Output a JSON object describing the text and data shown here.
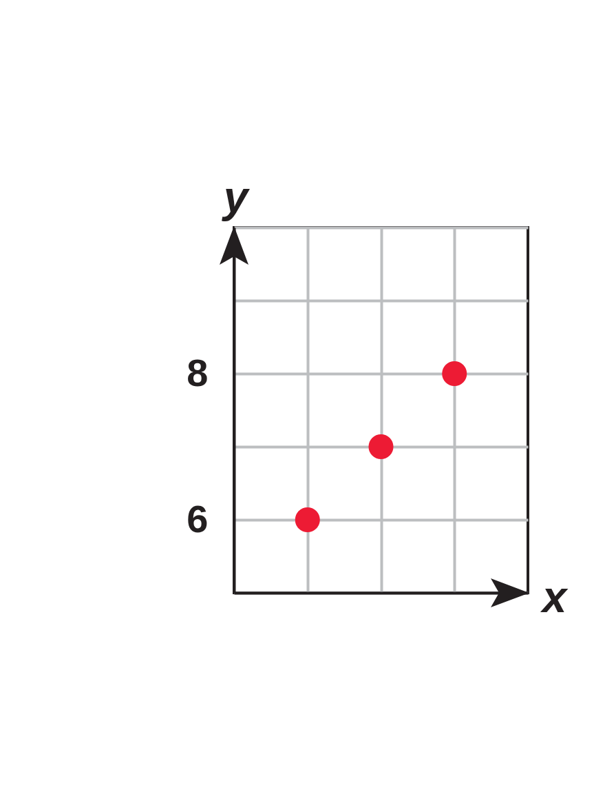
{
  "chart_data": {
    "type": "scatter",
    "xlabel": "x",
    "ylabel": "y",
    "categories": [
      null,
      null,
      null
    ],
    "values": [
      6,
      7,
      8
    ],
    "color": "#ed1b34",
    "ylim": [
      5,
      10
    ],
    "yticks": [
      {
        "value": 5,
        "label": null
      },
      6,
      {
        "value": 7,
        "label": null
      },
      8,
      {
        "value": 9,
        "label": null
      },
      {
        "value": 10,
        "label": null
      }
    ],
    "grid": true,
    "marker": "circle",
    "tick_labels": "y"
  }
}
